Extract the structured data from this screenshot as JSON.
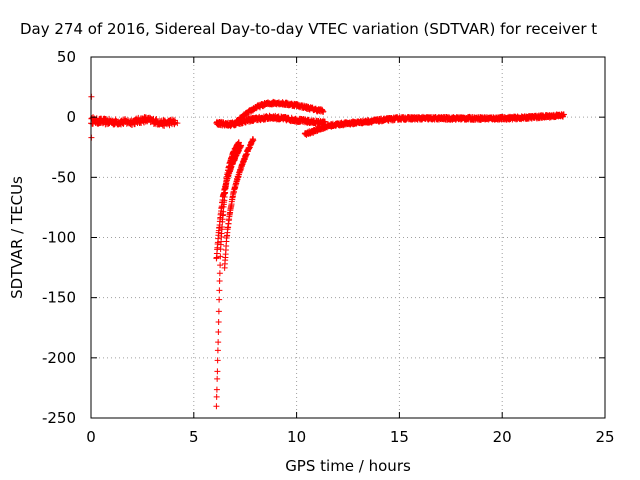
{
  "chart_data": {
    "type": "scatter",
    "title": "Day 274 of 2016, Sidereal Day-to-day VTEC variation (SDTVAR) for receiver t",
    "xlabel": "GPS time / hours",
    "ylabel": "SDTVAR / TECUs",
    "xlim": [
      0,
      25
    ],
    "ylim": [
      -250,
      50
    ],
    "xticks": [
      0,
      5,
      10,
      15,
      20,
      25
    ],
    "yticks": [
      -250,
      -200,
      -150,
      -100,
      -50,
      0,
      50
    ],
    "grid": true,
    "marker": "+",
    "marker_color": "#ff0000",
    "segments": [
      {
        "x": [
          0.0,
          1.0,
          2.0,
          2.6,
          3.0,
          3.5,
          4.0,
          4.1
        ],
        "y": [
          -3,
          -4,
          -4,
          -2,
          -3,
          -5,
          -4,
          -5
        ],
        "step": 0.02,
        "jitter": 2.5
      },
      {
        "x": [
          6.1,
          6.8,
          7.3,
          7.8,
          8.3,
          8.8,
          9.3,
          9.8,
          10.3,
          10.8,
          11.4
        ],
        "y": [
          -5,
          -6,
          -4,
          -2,
          -1,
          0,
          -1,
          -2,
          -3,
          -4,
          -5
        ],
        "step": 0.015,
        "jitter": 1.5
      },
      {
        "x": [
          7.0,
          7.5,
          8.0,
          8.5,
          9.0,
          9.5,
          10.0,
          10.5,
          11.0,
          11.3
        ],
        "y": [
          -5,
          2,
          8,
          11,
          12,
          11,
          10,
          8,
          6,
          5
        ],
        "step": 0.02,
        "jitter": 1.2
      },
      {
        "x": [
          10.4,
          10.8,
          11.2,
          11.6,
          12.0,
          12.6,
          13.2,
          13.8,
          14.4,
          15.0,
          16.0,
          17.0,
          18.0,
          19.0,
          20.0,
          21.0,
          22.0,
          23.0
        ],
        "y": [
          -14,
          -12,
          -9,
          -7,
          -6,
          -5,
          -4,
          -3,
          -2,
          -1,
          -1,
          -1,
          -1,
          -1,
          -1,
          -0.5,
          0.5,
          1.5
        ],
        "step": 0.015,
        "jitter": 1.2
      },
      {
        "x": [
          6.1,
          6.15,
          6.2,
          6.25,
          6.3,
          6.4,
          6.5,
          6.6,
          6.75,
          6.9,
          7.05,
          7.2
        ],
        "y": [
          -240,
          -210,
          -175,
          -140,
          -110,
          -85,
          -65,
          -50,
          -38,
          -30,
          -25,
          -21
        ],
        "step": 0.012,
        "jitter": 1.0
      },
      {
        "x": [
          6.1,
          6.2,
          6.3,
          6.4,
          6.55,
          6.7,
          6.85,
          7.0,
          7.15,
          7.3
        ],
        "y": [
          -118,
          -98,
          -82,
          -68,
          -56,
          -47,
          -40,
          -34,
          -29,
          -24
        ],
        "step": 0.012,
        "jitter": 1.0
      },
      {
        "x": [
          6.5,
          6.6,
          6.75,
          6.9,
          7.1,
          7.3,
          7.5,
          7.7,
          7.9
        ],
        "y": [
          -125,
          -100,
          -80,
          -65,
          -52,
          -42,
          -33,
          -25,
          -18
        ],
        "step": 0.012,
        "jitter": 1.0
      }
    ],
    "isolated_points": [
      {
        "x": 0.02,
        "y": 17
      },
      {
        "x": 0.02,
        "y": -17
      },
      {
        "x": 0.1,
        "y": 0
      },
      {
        "x": 4.2,
        "y": -5
      }
    ]
  }
}
